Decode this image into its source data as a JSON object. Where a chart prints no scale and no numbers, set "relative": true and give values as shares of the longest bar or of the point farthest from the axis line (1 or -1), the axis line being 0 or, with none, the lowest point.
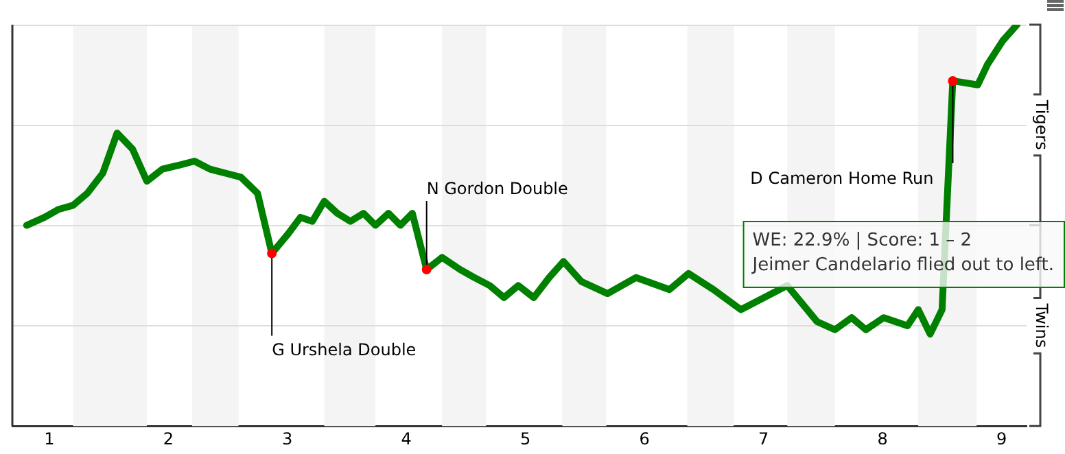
{
  "chart_data": {
    "type": "line",
    "relative": true,
    "x": [
      0.81,
      0.96,
      1.08,
      1.2,
      1.32,
      1.45,
      1.57,
      1.7,
      1.82,
      1.95,
      2.09,
      2.22,
      2.35,
      2.48,
      2.61,
      2.75,
      2.87,
      3.01,
      3.11,
      3.21,
      3.31,
      3.42,
      3.53,
      3.64,
      3.74,
      3.85,
      3.95,
      4.05,
      4.17,
      4.3,
      4.45,
      4.57,
      4.7,
      4.82,
      4.94,
      5.07,
      5.2,
      5.32,
      5.47,
      5.69,
      5.93,
      6.21,
      6.37,
      6.58,
      6.81,
      7.2,
      7.45,
      7.6,
      7.74,
      7.86,
      8.01,
      8.21,
      8.3,
      8.4,
      8.5,
      8.59,
      8.8,
      8.88,
      9.01,
      9.13
    ],
    "series": [
      {
        "color": "#008000",
        "values": [
          0.5,
          0.52,
          0.54,
          0.55,
          0.58,
          0.63,
          0.73,
          0.69,
          0.61,
          0.64,
          0.65,
          0.66,
          0.64,
          0.63,
          0.62,
          0.58,
          0.43,
          0.48,
          0.52,
          0.51,
          0.56,
          0.53,
          0.51,
          0.53,
          0.5,
          0.53,
          0.5,
          0.53,
          0.39,
          0.42,
          0.39,
          0.37,
          0.35,
          0.32,
          0.35,
          0.32,
          0.37,
          0.41,
          0.36,
          0.33,
          0.37,
          0.34,
          0.38,
          0.34,
          0.29,
          0.35,
          0.26,
          0.24,
          0.27,
          0.24,
          0.27,
          0.25,
          0.29,
          0.229,
          0.29,
          0.86,
          0.85,
          0.9,
          0.96,
          1
        ]
      }
    ],
    "xlim": [
      0.69,
      9.21
    ],
    "xticks": [
      1,
      2,
      3,
      4,
      5,
      6,
      7,
      8,
      9
    ],
    "grid": "y",
    "marker": "none",
    "line_style": "solid",
    "bands": [
      {
        "axis": "x",
        "from": 1.2,
        "to": 1.82,
        "color": "#f4f4f4"
      },
      {
        "axis": "x",
        "from": 2.2,
        "to": 2.59,
        "color": "#f4f4f4"
      },
      {
        "axis": "x",
        "from": 3.31,
        "to": 3.74,
        "color": "#f4f4f4"
      },
      {
        "axis": "x",
        "from": 4.3,
        "to": 4.67,
        "color": "#f4f4f4"
      },
      {
        "axis": "x",
        "from": 5.31,
        "to": 5.68,
        "color": "#f4f4f4"
      },
      {
        "axis": "x",
        "from": 6.36,
        "to": 6.75,
        "color": "#f4f4f4"
      },
      {
        "axis": "x",
        "from": 7.2,
        "to": 7.6,
        "color": "#f4f4f4"
      },
      {
        "axis": "x",
        "from": 8.3,
        "to": 8.79,
        "color": "#f4f4f4"
      }
    ],
    "annotations": [
      {
        "text": "G Urshela Double",
        "x": 2.87,
        "y": 0.43
      },
      {
        "text": "N Gordon Double",
        "x": 4.17,
        "y": 0.39
      },
      {
        "text": "D Cameron Home Run",
        "x": 8.59,
        "y": 0.86
      },
      "WE: 22.9% | Score: 1 – 2",
      "Jeimer Candelario flied out to left.",
      "Tigers",
      "Twins"
    ]
  }
}
